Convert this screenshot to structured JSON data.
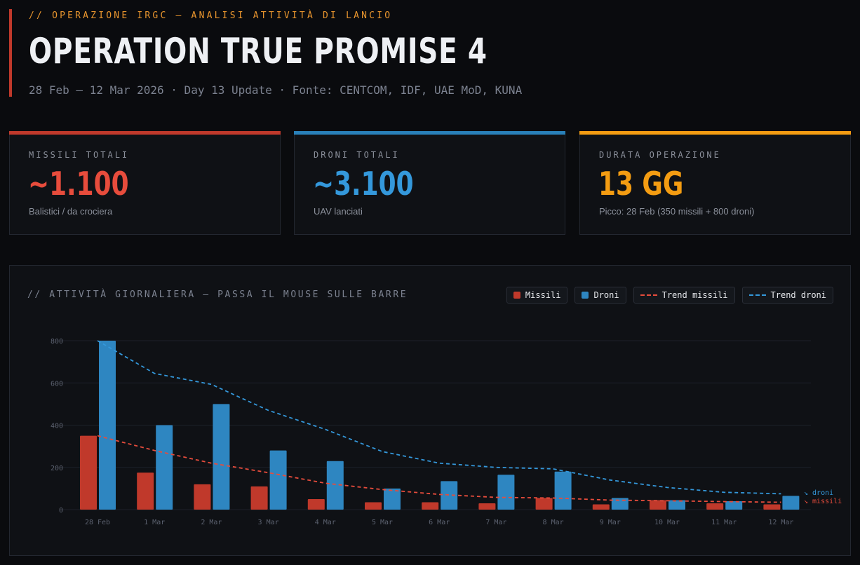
{
  "header": {
    "kicker": "// OPERAZIONE IRGC — ANALISI ATTIVITÀ DI LANCIO",
    "title": "OPERATION TRUE PROMISE 4",
    "subtitle": "28 Feb – 12 Mar 2026  ·  Day 13 Update  ·  Fonte: CENTCOM, IDF, UAE MoD, KUNA"
  },
  "cards": [
    {
      "label": "MISSILI TOTALI",
      "value": "~1.100",
      "sub": "Balistici / da crociera",
      "color": "#e74c3c",
      "bar_color": "#c0392b"
    },
    {
      "label": "DRONI TOTALI",
      "value": "~3.100",
      "sub": "UAV lanciati",
      "color": "#3498db",
      "bar_color": "#2980b9"
    },
    {
      "label": "DURATA OPERAZIONE",
      "value": "13 GG",
      "sub": "Picco: 28 Feb (350 missili + 800 droni)",
      "color": "#f39c12",
      "bar_color": "#f39c12"
    }
  ],
  "panel": {
    "title": "// ATTIVITÀ GIORNALIERA — PASSA IL MOUSE SULLE BARRE"
  },
  "legend": [
    {
      "label": "Missili",
      "kind": "box",
      "color": "#c0392b",
      "icon": "square-swatch-icon"
    },
    {
      "label": "Droni",
      "kind": "box",
      "color": "#2e86c1",
      "icon": "square-swatch-icon"
    },
    {
      "label": "Trend missili",
      "kind": "line",
      "color": "#e74c3c",
      "icon": "dashed-line-icon"
    },
    {
      "label": "Trend droni",
      "kind": "line",
      "color": "#3498db",
      "icon": "dashed-line-icon"
    }
  ],
  "chart_data": {
    "type": "bar",
    "categories": [
      "28 Feb",
      "1 Mar",
      "2 Mar",
      "3 Mar",
      "4 Mar",
      "5 Mar",
      "6 Mar",
      "7 Mar",
      "8 Mar",
      "9 Mar",
      "10 Mar",
      "11 Mar",
      "12 Mar"
    ],
    "series": [
      {
        "name": "Missili",
        "values": [
          350,
          175,
          120,
          110,
          50,
          35,
          35,
          30,
          55,
          25,
          45,
          30,
          25
        ],
        "color": "#c0392b"
      },
      {
        "name": "Droni",
        "values": [
          800,
          400,
          500,
          280,
          230,
          100,
          135,
          165,
          180,
          55,
          45,
          40,
          65
        ],
        "color": "#2e86c1"
      },
      {
        "name": "Trend missili",
        "type": "line",
        "dashed": true,
        "values": [
          350,
          280,
          220,
          175,
          125,
          95,
          72,
          58,
          55,
          45,
          42,
          38,
          35
        ],
        "color": "#e74c3c"
      },
      {
        "name": "Trend droni",
        "type": "line",
        "dashed": true,
        "values": [
          800,
          645,
          593,
          470,
          380,
          275,
          220,
          200,
          193,
          140,
          105,
          82,
          75
        ],
        "color": "#3498db"
      }
    ],
    "yticks": [
      0,
      200,
      400,
      600,
      800
    ],
    "ylim": [
      0,
      800
    ],
    "grid": true,
    "legend_position": "top-right",
    "end_labels": [
      {
        "text": "↘ droni",
        "color": "#3498db"
      },
      {
        "text": "↘ missili",
        "color": "#e74c3c"
      }
    ]
  }
}
